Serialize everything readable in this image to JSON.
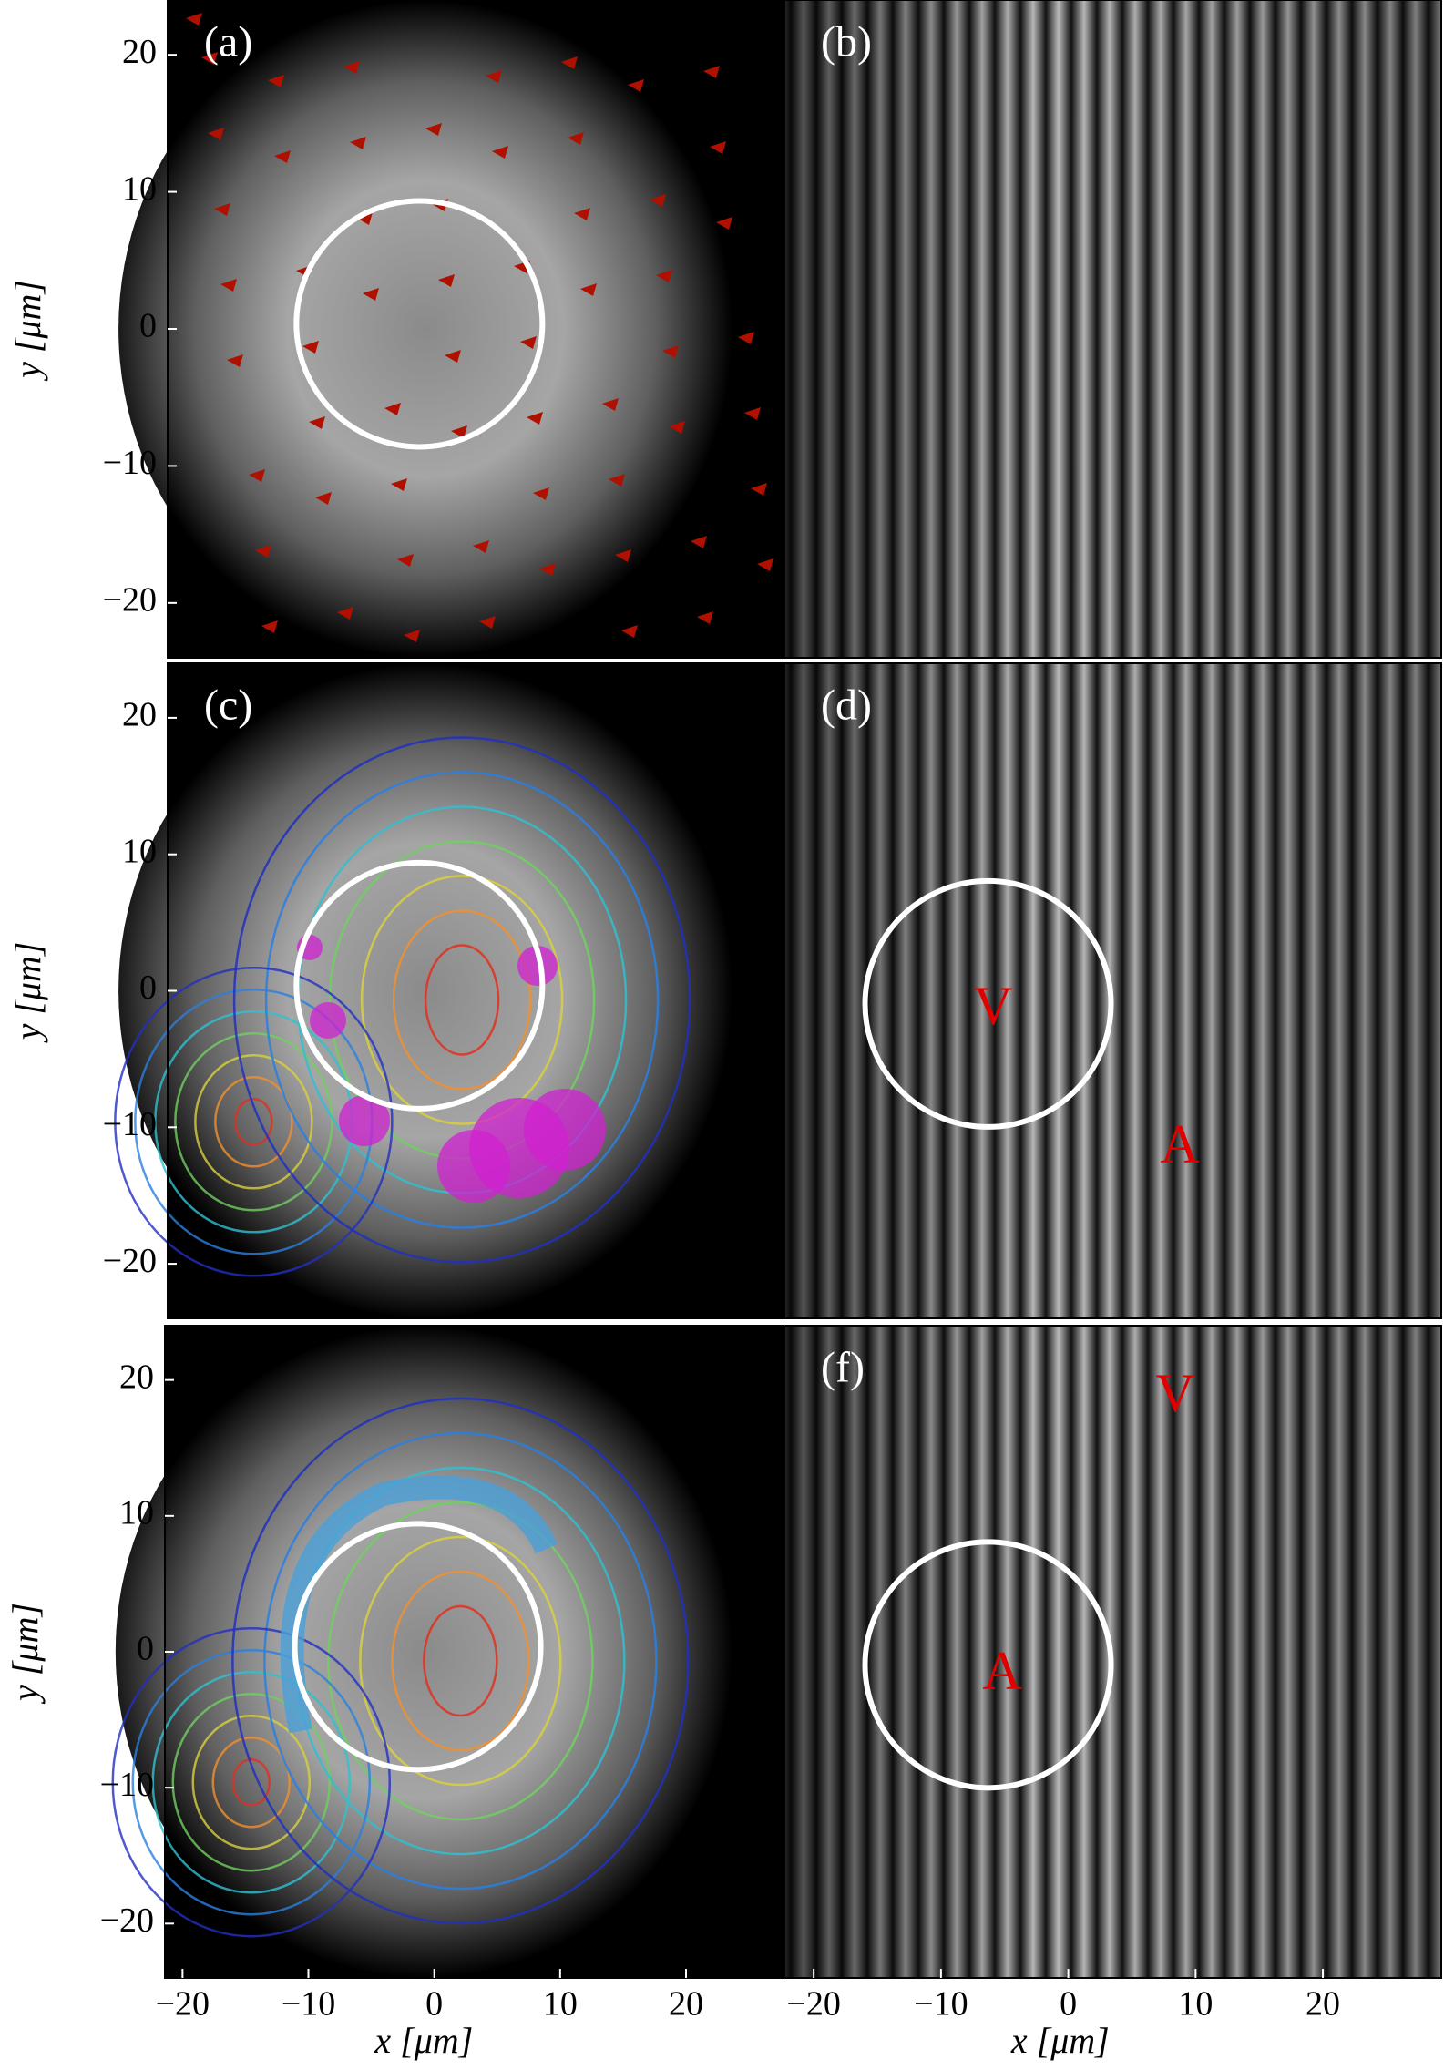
{
  "chart_data": [
    {
      "type": "image",
      "label": "(a)",
      "ylabel": "y [μm]",
      "ylim": [
        -24,
        24
      ],
      "yticks": [
        {
          "value": -20,
          "label": "−20"
        },
        {
          "value": -10,
          "label": "−10"
        },
        0,
        10,
        20
      ]
    },
    {
      "type": "image",
      "label": "(b)"
    },
    {
      "type": "image",
      "label": "(c)",
      "ylabel": "y [μm]",
      "ylim": [
        -24,
        24
      ],
      "yticks": [
        {
          "value": -20,
          "label": "−20"
        },
        {
          "value": -10,
          "label": "−10"
        },
        0,
        10,
        20
      ]
    },
    {
      "type": "image",
      "label": "(d)",
      "annotations": [
        "V",
        "A"
      ]
    },
    {
      "type": "image",
      "ylabel": "y [μm]",
      "ylim": [
        -24,
        24
      ],
      "yticks": [
        {
          "value": -20,
          "label": "−20"
        },
        {
          "value": -10,
          "label": "−10"
        },
        0,
        10,
        20
      ],
      "xlabel": "x [μm]",
      "xlim": [
        -21.4,
        27.6
      ],
      "xticks": [
        {
          "value": -20,
          "label": "−20"
        },
        {
          "value": -10,
          "label": "−10"
        },
        0,
        10,
        20
      ]
    },
    {
      "type": "image",
      "label": "(f)",
      "annotations": [
        "V",
        "A"
      ],
      "xlabel": "x [μm]",
      "xlim": [
        -22.3,
        29.3
      ],
      "xticks": [
        {
          "value": -20,
          "label": "−20"
        },
        {
          "value": -10,
          "label": "−10"
        },
        0,
        10,
        20
      ]
    }
  ]
}
